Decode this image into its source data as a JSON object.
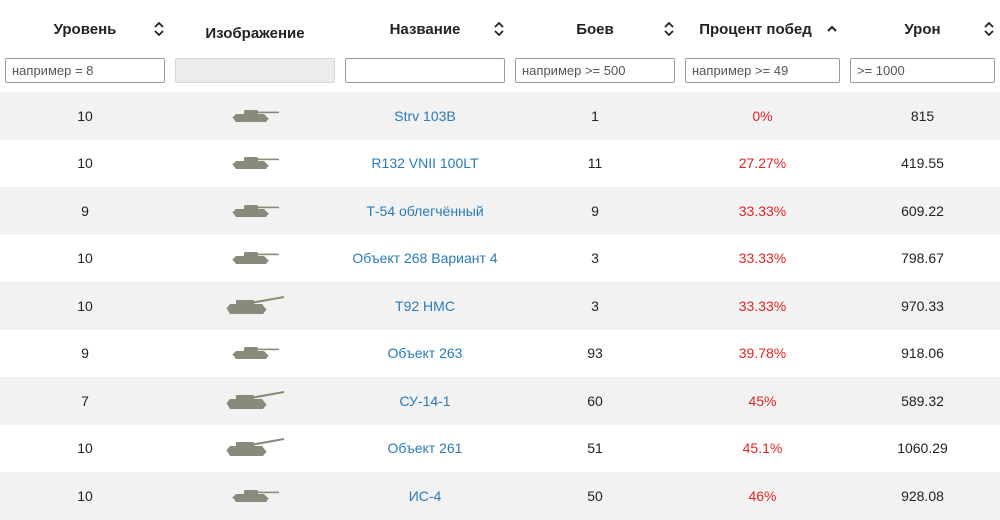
{
  "columns": [
    {
      "key": "tier",
      "label": "Уровень",
      "sortable": true,
      "sort": "both"
    },
    {
      "key": "image",
      "label": "Изображение",
      "sortable": false
    },
    {
      "key": "name",
      "label": "Название",
      "sortable": true,
      "sort": "both"
    },
    {
      "key": "battles",
      "label": "Боев",
      "sortable": true,
      "sort": "both"
    },
    {
      "key": "winrate",
      "label": "Процент побед",
      "sortable": true,
      "sort": "asc"
    },
    {
      "key": "damage",
      "label": "Урон",
      "sortable": true,
      "sort": "both"
    }
  ],
  "filters": {
    "tier": {
      "placeholder": "например = 8",
      "value": ""
    },
    "name": {
      "placeholder": "",
      "value": ""
    },
    "battles": {
      "placeholder": "например >= 500",
      "value": ""
    },
    "winrate": {
      "placeholder": "например >= 49",
      "value": ""
    },
    "damage": {
      "placeholder": ">= 1000",
      "value": ""
    }
  },
  "colors": {
    "link": "#2a7ab8",
    "winrate": "#e02424",
    "tank_silhouette": "#8a8a7a",
    "row_stripe": "#f2f2f2"
  },
  "rows": [
    {
      "tier": "10",
      "image": "tank-icon",
      "name": "Strv 103B",
      "battles": "1",
      "winrate": "0%",
      "damage": "815"
    },
    {
      "tier": "10",
      "image": "tank-icon",
      "name": "R132 VNII 100LT",
      "battles": "11",
      "winrate": "27.27%",
      "damage": "419.55"
    },
    {
      "tier": "9",
      "image": "tank-icon",
      "name": "Т-54 облегчённый",
      "battles": "9",
      "winrate": "33.33%",
      "damage": "609.22"
    },
    {
      "tier": "10",
      "image": "tank-icon",
      "name": "Объект 268 Вариант 4",
      "battles": "3",
      "winrate": "33.33%",
      "damage": "798.67"
    },
    {
      "tier": "10",
      "image": "spg-icon",
      "name": "T92 HMC",
      "battles": "3",
      "winrate": "33.33%",
      "damage": "970.33"
    },
    {
      "tier": "9",
      "image": "tank-icon",
      "name": "Объект 263",
      "battles": "93",
      "winrate": "39.78%",
      "damage": "918.06"
    },
    {
      "tier": "7",
      "image": "spg-icon",
      "name": "СУ-14-1",
      "battles": "60",
      "winrate": "45%",
      "damage": "589.32"
    },
    {
      "tier": "10",
      "image": "spg-icon",
      "name": "Объект 261",
      "battles": "51",
      "winrate": "45.1%",
      "damage": "1060.29"
    },
    {
      "tier": "10",
      "image": "tank-icon",
      "name": "ИС-4",
      "battles": "50",
      "winrate": "46%",
      "damage": "928.08"
    }
  ]
}
